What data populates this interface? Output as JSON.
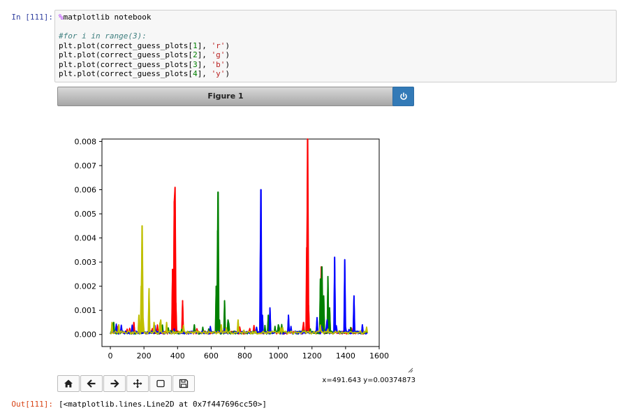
{
  "cell": {
    "in_prompt": "In [111]:",
    "out_prompt": "Out[111]:",
    "code": {
      "magic_char": "%",
      "magic_rest": "matplotlib notebook",
      "comment": "#for i in range(3):",
      "lines": [
        {
          "pre": "plt.plot(correct_guess_plots[",
          "idx": "1",
          "mid": "], ",
          "str": "'r'",
          "post": ")"
        },
        {
          "pre": "plt.plot(correct_guess_plots[",
          "idx": "2",
          "mid": "], ",
          "str": "'g'",
          "post": ")"
        },
        {
          "pre": "plt.plot(correct_guess_plots[",
          "idx": "3",
          "mid": "], ",
          "str": "'b'",
          "post": ")"
        },
        {
          "pre": "plt.plot(correct_guess_plots[",
          "idx": "4",
          "mid": "], ",
          "str": "'y'",
          "post": ")"
        }
      ]
    },
    "output": "[<matplotlib.lines.Line2D at 0x7f447696cc50>]"
  },
  "figure": {
    "title": "Figure 1",
    "power_icon": "power-icon",
    "coords": "x=491.643 y=0.00374873"
  },
  "toolbar": [
    {
      "name": "home-icon",
      "title": "Home"
    },
    {
      "name": "back-arrow-icon",
      "title": "Back"
    },
    {
      "name": "forward-arrow-icon",
      "title": "Forward"
    },
    {
      "name": "pan-icon",
      "title": "Pan"
    },
    {
      "name": "zoom-rect-icon",
      "title": "Zoom"
    },
    {
      "name": "save-icon",
      "title": "Save"
    }
  ],
  "colors": {
    "r": "#ff0000",
    "g": "#008000",
    "b": "#0000ff",
    "y": "#bfbf00",
    "accent": "#337ab7"
  },
  "chart_data": {
    "type": "line",
    "title": "",
    "xlabel": "",
    "ylabel": "",
    "xlim": [
      -50,
      1600
    ],
    "ylim": [
      -0.0005,
      0.0081
    ],
    "xticks": [
      0,
      200,
      400,
      600,
      800,
      1000,
      1200,
      1400,
      1600
    ],
    "yticks": [
      0.0,
      0.001,
      0.002,
      0.003,
      0.004,
      0.005,
      0.006,
      0.007,
      0.008
    ],
    "ytick_labels": [
      "0.000",
      "0.001",
      "0.002",
      "0.003",
      "0.004",
      "0.005",
      "0.006",
      "0.007",
      "0.008"
    ],
    "x_max": 1530,
    "series": [
      {
        "color": "r",
        "peaks": [
          [
            140,
            0.0005
          ],
          [
            195,
            0.0005
          ],
          [
            370,
            0.0027
          ],
          [
            380,
            0.0055
          ],
          [
            385,
            0.0061
          ],
          [
            390,
            0.0013
          ],
          [
            430,
            0.0014
          ],
          [
            1150,
            0.0005
          ],
          [
            1168,
            0.0036
          ],
          [
            1173,
            0.0081
          ],
          [
            1180,
            0.0012
          ],
          [
            1255,
            0.0028
          ],
          [
            1262,
            0.0015
          ],
          [
            1290,
            0.0006
          ]
        ]
      },
      {
        "color": "g",
        "peaks": [
          [
            20,
            0.0005
          ],
          [
            500,
            0.0004
          ],
          [
            630,
            0.002
          ],
          [
            638,
            0.0043
          ],
          [
            642,
            0.0059
          ],
          [
            648,
            0.0006
          ],
          [
            680,
            0.0014
          ],
          [
            700,
            0.0006
          ],
          [
            940,
            0.0008
          ],
          [
            1000,
            0.0004
          ],
          [
            1250,
            0.0023
          ],
          [
            1258,
            0.0028
          ],
          [
            1270,
            0.0016
          ],
          [
            1295,
            0.0024
          ],
          [
            1305,
            0.0011
          ]
        ]
      },
      {
        "color": "b",
        "peaks": [
          [
            870,
            0.0003
          ],
          [
            893,
            0.0038
          ],
          [
            897,
            0.006
          ],
          [
            905,
            0.0008
          ],
          [
            950,
            0.0011
          ],
          [
            1060,
            0.0008
          ],
          [
            1230,
            0.0007
          ],
          [
            1290,
            0.0006
          ],
          [
            1335,
            0.0032
          ],
          [
            1395,
            0.0031
          ],
          [
            1450,
            0.0016
          ],
          [
            1500,
            0.0004
          ]
        ]
      },
      {
        "color": "y",
        "peaks": [
          [
            10,
            0.0005
          ],
          [
            50,
            0.0004
          ],
          [
            170,
            0.0008
          ],
          [
            183,
            0.002
          ],
          [
            188,
            0.0045
          ],
          [
            193,
            0.0007
          ],
          [
            230,
            0.0019
          ],
          [
            260,
            0.0005
          ],
          [
            300,
            0.0006
          ],
          [
            335,
            0.0005
          ],
          [
            660,
            0.0004
          ],
          [
            760,
            0.0006
          ]
        ]
      }
    ]
  }
}
